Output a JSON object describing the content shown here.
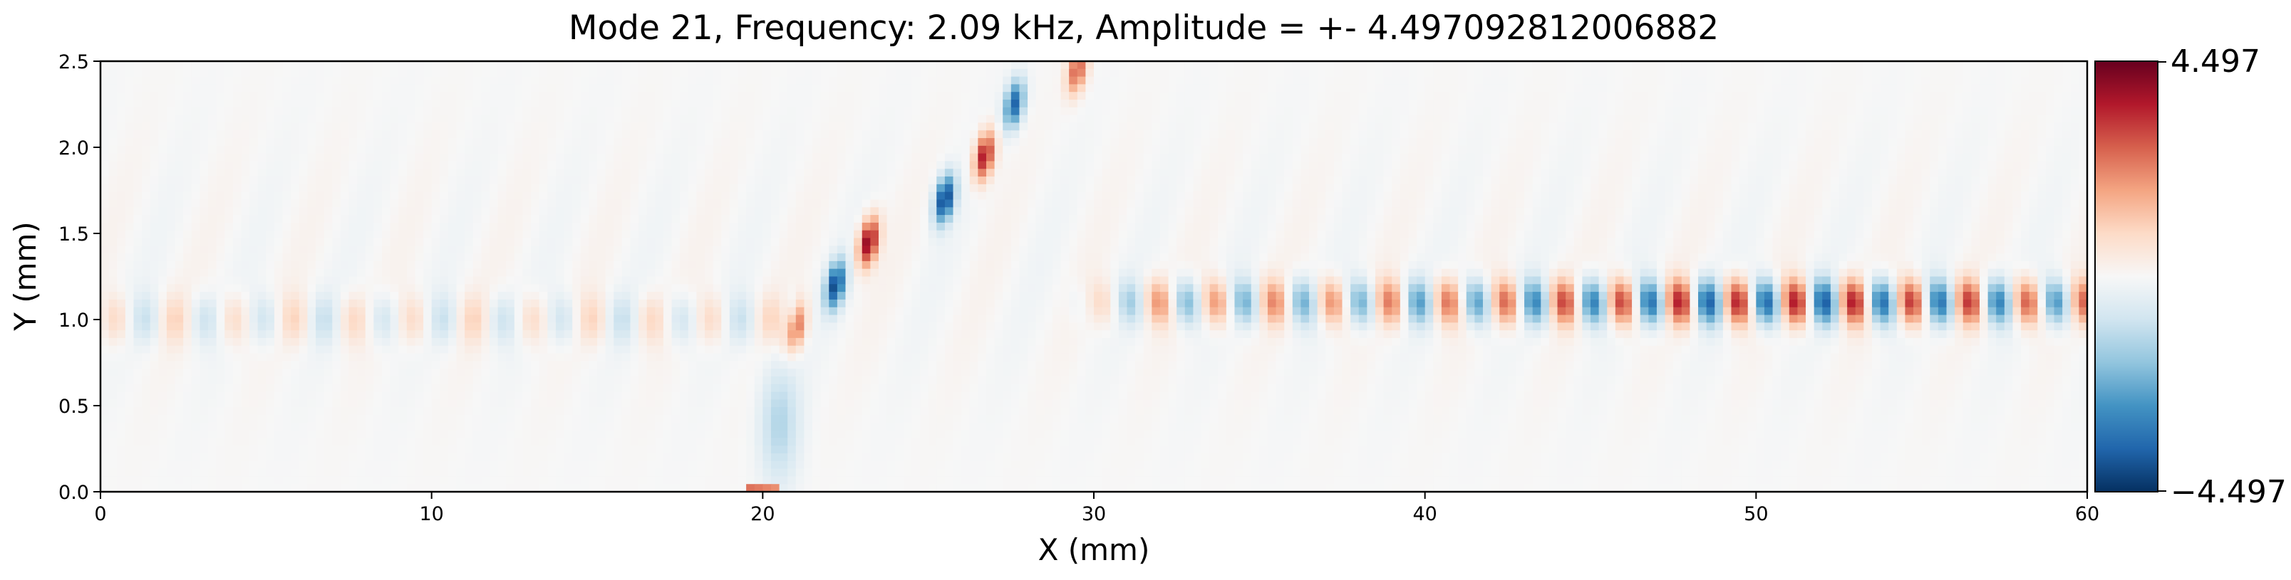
{
  "chart_data": {
    "type": "heatmap",
    "title": "Mode 21, Frequency: 2.09 kHz, Amplitude = +- 4.497092812006882",
    "xlabel": "X (mm)",
    "ylabel": "Y (mm)",
    "xlim": [
      0,
      60
    ],
    "ylim": [
      0,
      2.5
    ],
    "xticks": [
      0,
      10,
      20,
      30,
      40,
      50,
      60
    ],
    "xtick_labels": [
      "0",
      "10",
      "20",
      "30",
      "40",
      "50",
      "60"
    ],
    "yticks": [
      0.0,
      0.5,
      1.0,
      1.5,
      2.0,
      2.5
    ],
    "ytick_labels": [
      "0.0",
      "0.5",
      "1.0",
      "1.5",
      "2.0",
      "2.5"
    ],
    "colormap": "RdBu_r",
    "colormap_stops": [
      "#053061",
      "#2166ac",
      "#4393c3",
      "#92c5de",
      "#d1e5f0",
      "#f7f7f7",
      "#fddbc7",
      "#f4a582",
      "#d6604d",
      "#b2182b",
      "#67001f"
    ],
    "vmin": -4.497,
    "vmax": 4.497,
    "colorbar_tick_labels": [
      "4.497",
      "−4.497"
    ],
    "grid": false,
    "features": {
      "oblique_beam": {
        "description": "strong alternating lobes along an oblique line",
        "start": [
          21.0,
          0.9
        ],
        "end": [
          29.5,
          2.5
        ],
        "peak_amplitude": 4.4,
        "lobes": [
          {
            "x": 21.0,
            "y": 0.95,
            "value": 2.6
          },
          {
            "x": 22.2,
            "y": 1.2,
            "value": -4.0
          },
          {
            "x": 23.2,
            "y": 1.45,
            "value": 4.2
          },
          {
            "x": 25.5,
            "y": 1.7,
            "value": -4.3
          },
          {
            "x": 26.7,
            "y": 1.95,
            "value": 3.8
          },
          {
            "x": 27.6,
            "y": 2.25,
            "value": -3.6
          },
          {
            "x": 29.5,
            "y": 2.45,
            "value": 2.8
          }
        ]
      },
      "horizontal_wave_band": {
        "y_center": 1.1,
        "x_range": [
          30,
          60
        ],
        "wavelength_mm": 1.75,
        "peak_amplitude": 3.6,
        "peak_x": 50.8
      },
      "source_patch": {
        "x_range": [
          19.4,
          20.6
        ],
        "y": 0.0,
        "value": 2.5
      },
      "weak_upstream_band": {
        "y_center": 1.0,
        "x_range": [
          0,
          20
        ],
        "amplitude": 0.9
      },
      "near_source_blue": {
        "x": 20.5,
        "y": 0.4,
        "value": -1.3
      }
    }
  }
}
